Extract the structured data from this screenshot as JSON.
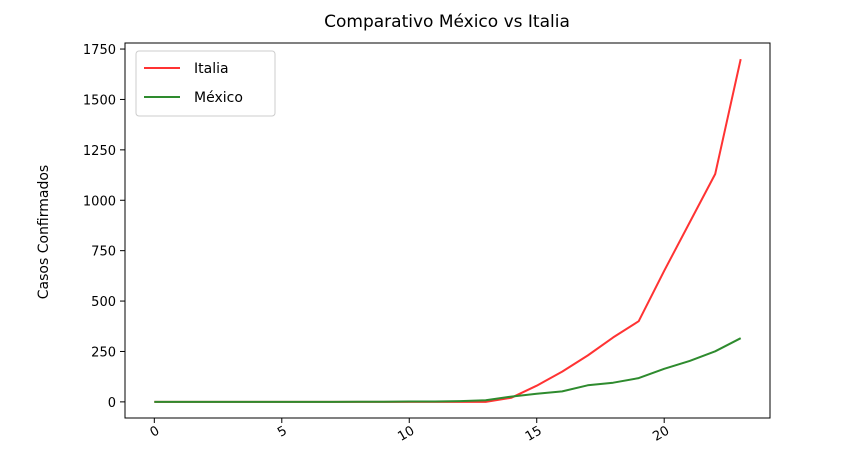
{
  "chart_data": {
    "type": "line",
    "title": "Comparativo México vs Italia",
    "xlabel": "",
    "ylabel": "Casos Confirmados",
    "x": [
      0,
      1,
      2,
      3,
      4,
      5,
      6,
      7,
      8,
      9,
      10,
      11,
      12,
      13,
      14,
      15,
      16,
      17,
      18,
      19,
      20,
      21,
      22,
      23
    ],
    "xlim": [
      -1.15,
      24.15
    ],
    "ylim": [
      -80,
      1780
    ],
    "xticks": [
      0,
      5,
      10,
      15,
      20
    ],
    "yticks": [
      0,
      250,
      500,
      750,
      1000,
      1250,
      1500,
      1750
    ],
    "grid": false,
    "legend_position": "top-left",
    "series": [
      {
        "name": "Italia",
        "color": "#ff3333",
        "values": [
          0,
          0,
          0,
          0,
          0,
          0,
          0,
          0,
          0,
          0,
          0,
          0,
          0,
          0,
          20,
          80,
          150,
          230,
          320,
          400,
          650,
          890,
          1130,
          1700
        ]
      },
      {
        "name": "México",
        "color": "#2e8b2e",
        "values": [
          0,
          0,
          0,
          0,
          0,
          0,
          0,
          0,
          1,
          1,
          2,
          2,
          4,
          8,
          26,
          40,
          52,
          82,
          95,
          118,
          164,
          203,
          251,
          316
        ]
      }
    ]
  }
}
